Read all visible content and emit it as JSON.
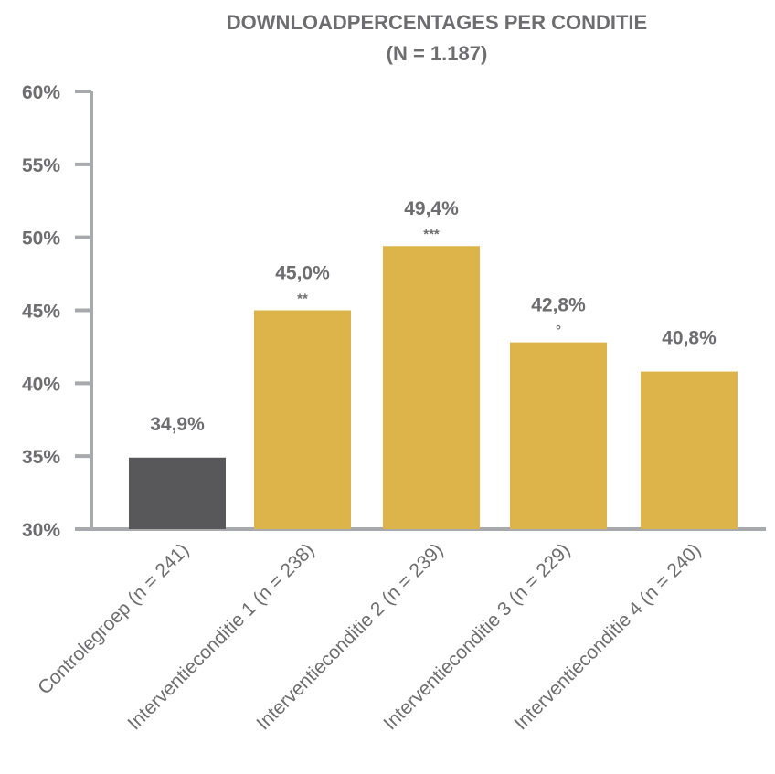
{
  "chart_data": {
    "type": "bar",
    "title": "DOWNLOADPERCENTAGES PER CONDITIE",
    "subtitle": "(N = 1.187)",
    "categories": [
      "Controlegroep (n = 241)",
      "Interventieconditie 1 (n = 238)",
      "Interventieconditie 2 (n = 239)",
      "Interventieconditie 3 (n = 229)",
      "Interventieconditie 4 (n = 240)"
    ],
    "values": [
      34.9,
      45.0,
      49.4,
      42.8,
      40.8
    ],
    "value_labels": [
      "34,9%",
      "45,0%",
      "49,4%",
      "42,8%",
      "40,8%"
    ],
    "significance_labels": [
      "",
      "**",
      "***",
      "°",
      ""
    ],
    "bar_colors": [
      "#58585a",
      "#dcb44a",
      "#dcb44a",
      "#dcb44a",
      "#dcb44a"
    ],
    "ylim": [
      30,
      60
    ],
    "yticks": [
      30,
      35,
      40,
      45,
      50,
      55,
      60
    ],
    "ytick_labels": [
      "30%",
      "35%",
      "40%",
      "45%",
      "50%",
      "55%",
      "60%"
    ],
    "xlabel": "",
    "ylabel": "",
    "grid": false,
    "axis_color": "#a7a9ac",
    "text_color": "#6d6d6f"
  }
}
